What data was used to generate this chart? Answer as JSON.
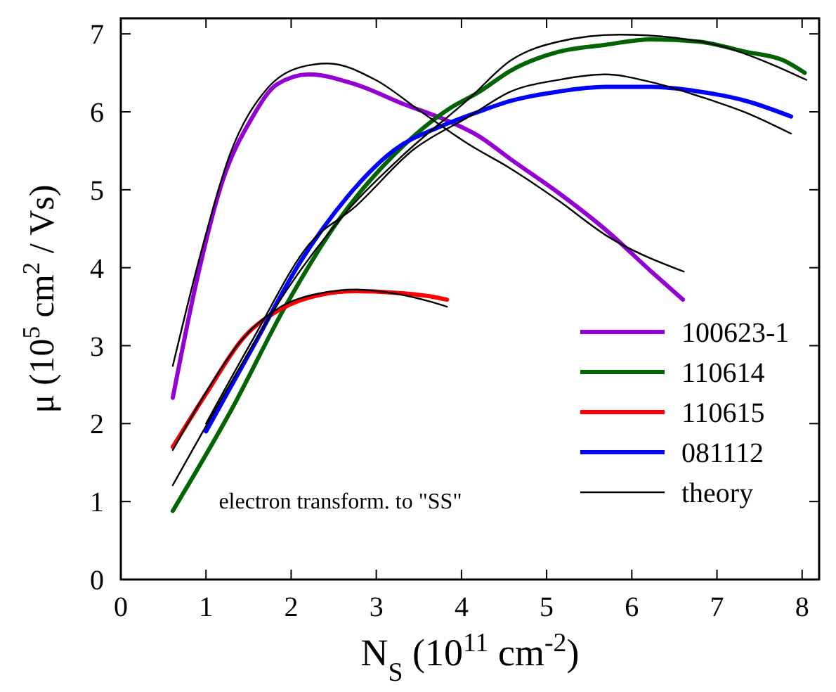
{
  "chart_data": {
    "type": "line",
    "xlabel": "N$_{S}$ (10$^{11}$ cm$^{-2}$)",
    "ylabel": "μ (10$^{5}$ cm$^{2}$ / Vs)",
    "xlim": [
      0,
      8.2
    ],
    "ylim": [
      0,
      7.2
    ],
    "xticks": [
      0,
      1,
      2,
      3,
      4,
      5,
      6,
      7,
      8
    ],
    "yticks": [
      0,
      1,
      2,
      3,
      4,
      5,
      6,
      7
    ],
    "grid": false,
    "legend": "bottom right",
    "marker": "none",
    "line_style": "solid",
    "annotations": [
      "electron transform. to \"SS\""
    ],
    "series": [
      {
        "name": "100623-1",
        "color": "#9400d3",
        "x": [
          0.61,
          0.89,
          1.17,
          1.55,
          1.83,
          2.21,
          2.76,
          3.32,
          3.87,
          4.2,
          4.58,
          5.14,
          5.69,
          6.23,
          6.6
        ],
        "values": [
          2.33,
          3.83,
          5.03,
          5.94,
          6.35,
          6.48,
          6.35,
          6.1,
          5.87,
          5.69,
          5.39,
          4.96,
          4.49,
          3.95,
          3.59
        ]
      },
      {
        "name": "110614",
        "color": "#006400",
        "x": [
          0.61,
          1.28,
          1.94,
          2.55,
          3.21,
          3.87,
          4.2,
          4.58,
          5.14,
          5.69,
          6.23,
          6.79,
          7.34,
          7.78,
          8.03
        ],
        "values": [
          0.88,
          2.14,
          3.52,
          4.6,
          5.45,
          6.05,
          6.25,
          6.53,
          6.77,
          6.86,
          6.93,
          6.9,
          6.77,
          6.66,
          6.5
        ]
      },
      {
        "name": "110615",
        "color": "#ff0000",
        "x": [
          0.61,
          1.0,
          1.44,
          1.88,
          2.33,
          2.76,
          3.21,
          3.65,
          3.83
        ],
        "values": [
          1.7,
          2.38,
          3.1,
          3.47,
          3.65,
          3.7,
          3.68,
          3.63,
          3.59
        ]
      },
      {
        "name": "081112",
        "color": "#0000ff",
        "x": [
          1.0,
          1.55,
          2.1,
          2.66,
          3.21,
          3.75,
          4.2,
          4.58,
          5.14,
          5.69,
          6.23,
          6.79,
          7.34,
          7.87
        ],
        "values": [
          1.9,
          2.98,
          4.06,
          4.91,
          5.51,
          5.81,
          6.0,
          6.14,
          6.26,
          6.32,
          6.32,
          6.26,
          6.14,
          5.94
        ]
      },
      {
        "name": "theory",
        "color": "#000000",
        "x": [
          0.61,
          0.94,
          1.28,
          1.72,
          2.1,
          2.43,
          2.99,
          3.54,
          4.09,
          4.58,
          5.14,
          5.69,
          6.61
        ],
        "values": [
          2.74,
          4.19,
          5.45,
          6.3,
          6.57,
          6.62,
          6.41,
          5.99,
          5.58,
          5.27,
          4.86,
          4.42,
          3.95
        ]
      },
      {
        "color": "#000000",
        "x": [
          0.61,
          1.28,
          1.94,
          2.66,
          3.32,
          4.09,
          4.58,
          5.14,
          5.85,
          6.51,
          7.06,
          7.62,
          8.05
        ],
        "values": [
          1.21,
          2.5,
          3.7,
          4.73,
          5.45,
          6.17,
          6.66,
          6.9,
          6.99,
          6.95,
          6.84,
          6.62,
          6.41
        ]
      },
      {
        "color": "#000000",
        "x": [
          0.61,
          1.0,
          1.44,
          1.88,
          2.33,
          2.76,
          3.21,
          3.65,
          3.83
        ],
        "values": [
          1.66,
          2.4,
          3.1,
          3.5,
          3.67,
          3.72,
          3.67,
          3.56,
          3.5
        ]
      },
      {
        "color": "#000000",
        "x": [
          1.0,
          1.55,
          2.21,
          2.76,
          3.43,
          4.09,
          4.58,
          5.14,
          5.69,
          6.23,
          6.79,
          7.34,
          7.87
        ],
        "values": [
          2.0,
          3.08,
          4.3,
          4.79,
          5.51,
          5.94,
          6.26,
          6.41,
          6.48,
          6.38,
          6.2,
          5.99,
          5.72
        ]
      }
    ]
  }
}
